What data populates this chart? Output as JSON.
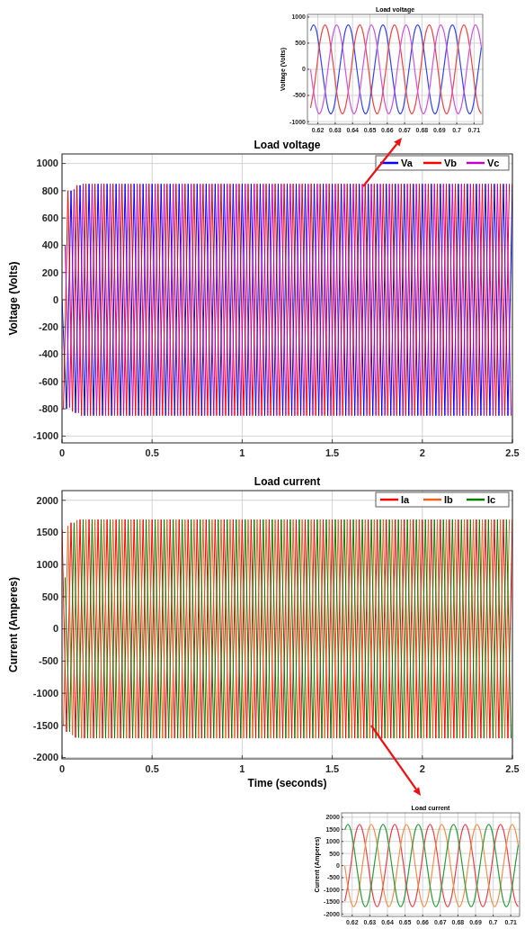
{
  "chart_data": [
    {
      "type": "line",
      "title": "Load voltage",
      "ylabel": "Voltage (Volts)",
      "grid": true,
      "xlim": [
        0.614,
        0.715
      ],
      "ylim": [
        -1050,
        1050
      ],
      "xticks": [
        0.62,
        0.63,
        0.64,
        0.65,
        0.66,
        0.67,
        0.68,
        0.69,
        0.7,
        0.71
      ],
      "yticks": [
        -1000,
        -500,
        0,
        500,
        1000
      ],
      "x": [
        0.6158,
        0.6175,
        0.6192,
        0.6208,
        0.6225,
        0.6242,
        0.6258,
        0.6275,
        0.6292,
        0.6308,
        0.6325,
        0.6342,
        0.6358,
        0.6375,
        0.6392,
        0.6408,
        0.6425,
        0.6442,
        0.6458,
        0.6475,
        0.6492,
        0.6508,
        0.6525,
        0.6542,
        0.6558,
        0.6575,
        0.6592,
        0.6608,
        0.6625,
        0.6642,
        0.6658,
        0.6675,
        0.6692,
        0.6708,
        0.6725,
        0.6742,
        0.6758,
        0.6775,
        0.6792,
        0.6808,
        0.6825,
        0.6842,
        0.6858,
        0.6875,
        0.6892,
        0.6908,
        0.6925,
        0.6942,
        0.6958,
        0.6975,
        0.6992,
        0.7008,
        0.7025,
        0.7042,
        0.7058,
        0.7075,
        0.7092,
        0.7108,
        0.7125,
        0.7142
      ],
      "series": [
        {
          "color": "#3344ee",
          "values": [
            736,
            850,
            736,
            425,
            0,
            -425,
            -736,
            -850,
            -736,
            -425,
            0,
            425,
            736,
            850,
            736,
            425,
            0,
            -425,
            -736,
            -850,
            -736,
            -425,
            0,
            425,
            736,
            850,
            736,
            425,
            0,
            -425,
            -736,
            -850,
            -736,
            -425,
            0,
            425,
            736,
            850,
            736,
            425,
            0,
            -425,
            -736,
            -850,
            -736,
            -425,
            0,
            425,
            736,
            850,
            736,
            425,
            0,
            -425,
            -736,
            -850,
            -736,
            -425,
            0,
            425
          ]
        },
        {
          "color": "#ee4444",
          "values": [
            -736,
            -425,
            0,
            425,
            736,
            850,
            736,
            425,
            0,
            -425,
            -736,
            -850,
            -736,
            -425,
            0,
            425,
            736,
            850,
            736,
            425,
            0,
            -425,
            -736,
            -850,
            -736,
            -425,
            0,
            425,
            736,
            850,
            736,
            425,
            0,
            -425,
            -736,
            -850,
            -736,
            -425,
            0,
            425,
            736,
            850,
            736,
            425,
            0,
            -425,
            -736,
            -850,
            -736,
            -425,
            0,
            425,
            736,
            850,
            736,
            425,
            0,
            -425,
            -736,
            -850
          ]
        },
        {
          "color": "#cc55dd",
          "values": [
            0,
            -425,
            -736,
            -850,
            -736,
            -425,
            0,
            425,
            736,
            850,
            736,
            425,
            0,
            -425,
            -736,
            -850,
            -736,
            -425,
            0,
            425,
            736,
            850,
            736,
            425,
            0,
            -425,
            -736,
            -850,
            -736,
            -425,
            0,
            425,
            736,
            850,
            736,
            425,
            0,
            -425,
            -736,
            -850,
            -736,
            -425,
            0,
            425,
            736,
            850,
            736,
            425,
            0,
            -425,
            -736,
            -850,
            -736,
            -425,
            0,
            425,
            736,
            850,
            736,
            425
          ]
        }
      ]
    },
    {
      "type": "line",
      "title": "Load voltage",
      "ylabel": "Voltage (Volts)",
      "grid": true,
      "legend": "top right",
      "xlim": [
        0,
        2.5
      ],
      "ylim": [
        -1050,
        1070
      ],
      "xticks": [
        0,
        0.5,
        1,
        1.5,
        2,
        2.5
      ],
      "yticks": [
        -1000,
        -800,
        -600,
        -400,
        -200,
        0,
        200,
        400,
        600,
        800,
        1000
      ],
      "series": [
        {
          "name": "Va",
          "color": "#0000ff",
          "x": [
            0,
            0.025,
            0.05,
            0.075,
            0.1,
            0.125,
            0.15,
            0.175,
            0.2,
            0.225,
            0.25,
            0.275,
            0.3,
            0.325,
            0.35,
            0.375,
            0.4,
            0.425,
            0.45,
            0.475,
            0.5,
            0.525,
            0.55,
            0.575,
            0.6,
            0.625,
            0.65,
            0.675,
            0.7,
            0.725,
            0.75,
            0.775,
            0.8,
            0.825,
            0.85,
            0.875,
            0.9,
            0.925,
            0.95,
            0.975,
            1,
            1.025,
            1.05,
            1.075,
            1.1,
            1.125,
            1.15,
            1.175,
            1.2,
            1.225,
            1.25,
            1.275,
            1.3,
            1.325,
            1.35,
            1.375,
            1.4,
            1.425,
            1.45,
            1.475,
            1.5,
            1.525,
            1.55,
            1.575,
            1.6,
            1.625,
            1.65,
            1.675,
            1.7,
            1.725,
            1.75,
            1.775,
            1.8,
            1.825,
            1.85,
            1.875,
            1.9,
            1.925,
            1.95,
            1.975,
            2,
            2.025,
            2.05,
            2.075,
            2.1,
            2.125,
            2.15,
            2.175,
            2.2,
            2.225,
            2.25,
            2.275,
            2.3,
            2.325,
            2.35,
            2.375,
            2.4,
            2.425,
            2.45,
            2.475,
            2.5
          ],
          "values": [
            0,
            -800,
            800,
            -830,
            840,
            -850,
            850,
            -850,
            850,
            -850,
            850,
            -850,
            850,
            -850,
            850,
            -850,
            850,
            -850,
            850,
            -850,
            850,
            -850,
            850,
            -850,
            850,
            -850,
            850,
            -850,
            850,
            -850,
            850,
            -850,
            850,
            -850,
            850,
            -850,
            850,
            -850,
            850,
            -850,
            850,
            -850,
            850,
            -850,
            850,
            -850,
            850,
            -850,
            850,
            -850,
            850,
            -850,
            850,
            -850,
            850,
            -850,
            850,
            -850,
            850,
            -850,
            850,
            -850,
            850,
            -850,
            850,
            -850,
            850,
            -850,
            850,
            -850,
            850,
            -850,
            850,
            -850,
            850,
            -850,
            850,
            -850,
            850,
            -850,
            850,
            -850,
            850,
            -850,
            850,
            -850,
            850,
            -850,
            850,
            -850,
            850,
            -850,
            850,
            -850,
            850,
            -850,
            850,
            -850,
            850,
            -850,
            850
          ]
        },
        {
          "name": "Vb",
          "color": "#ff0000",
          "x": [
            0.008,
            0.033,
            0.058,
            0.083,
            0.108,
            0.133,
            0.158,
            0.183,
            0.208,
            0.233,
            0.258,
            0.283,
            0.308,
            0.333,
            0.358,
            0.383,
            0.408,
            0.433,
            0.458,
            0.483,
            0.508,
            0.533,
            0.558,
            0.583,
            0.608,
            0.633,
            0.658,
            0.683,
            0.708,
            0.733,
            0.758,
            0.783,
            0.808,
            0.833,
            0.858,
            0.883,
            0.908,
            0.933,
            0.958,
            0.983,
            1.008,
            1.033,
            1.058,
            1.083,
            1.108,
            1.133,
            1.158,
            1.183,
            1.208,
            1.233,
            1.258,
            1.283,
            1.308,
            1.333,
            1.358,
            1.383,
            1.408,
            1.433,
            1.458,
            1.483,
            1.508,
            1.533,
            1.558,
            1.583,
            1.608,
            1.633,
            1.658,
            1.683,
            1.708,
            1.733,
            1.758,
            1.783,
            1.808,
            1.833,
            1.858,
            1.883,
            1.908,
            1.933,
            1.958,
            1.983,
            2.008,
            2.033,
            2.058,
            2.083,
            2.108,
            2.133,
            2.158,
            2.183,
            2.208,
            2.233,
            2.258,
            2.283,
            2.308,
            2.333,
            2.358,
            2.383,
            2.408,
            2.433,
            2.458,
            2.483
          ],
          "values": [
            -800,
            800,
            -820,
            840,
            -850,
            850,
            -850,
            850,
            -850,
            850,
            -850,
            850,
            -850,
            850,
            -850,
            850,
            -850,
            850,
            -850,
            850,
            -850,
            850,
            -850,
            850,
            -850,
            850,
            -850,
            850,
            -850,
            850,
            -850,
            850,
            -850,
            850,
            -850,
            850,
            -850,
            850,
            -850,
            850,
            -850,
            850,
            -850,
            850,
            -850,
            850,
            -850,
            850,
            -850,
            850,
            -850,
            850,
            -850,
            850,
            -850,
            850,
            -850,
            850,
            -850,
            850,
            -850,
            850,
            -850,
            850,
            -850,
            850,
            -850,
            850,
            -850,
            850,
            -850,
            850,
            -850,
            850,
            -850,
            850,
            -850,
            850,
            -850,
            850,
            -850,
            850,
            -850,
            850,
            -850,
            850,
            -850,
            850,
            -850,
            850,
            -850,
            850,
            -850,
            850,
            -850,
            850,
            -850,
            850,
            -850,
            850
          ]
        },
        {
          "name": "Vc",
          "color": "#c000c0",
          "x": [
            0.017,
            0.042,
            0.067,
            0.092,
            0.117,
            0.142,
            0.167,
            0.192,
            0.217,
            0.242,
            0.267,
            0.292,
            0.317,
            0.342,
            0.367,
            0.392,
            0.417,
            0.442,
            0.467,
            0.492,
            0.517,
            0.542,
            0.567,
            0.592,
            0.617,
            0.642,
            0.667,
            0.692,
            0.717,
            0.742,
            0.767,
            0.792,
            0.817,
            0.842,
            0.867,
            0.892,
            0.917,
            0.942,
            0.967,
            0.992,
            1.017,
            1.042,
            1.067,
            1.092,
            1.117,
            1.142,
            1.167,
            1.192,
            1.217,
            1.242,
            1.267,
            1.292,
            1.317,
            1.342,
            1.367,
            1.392,
            1.417,
            1.442,
            1.467,
            1.492,
            1.517,
            1.542,
            1.567,
            1.592,
            1.617,
            1.642,
            1.667,
            1.692,
            1.717,
            1.742,
            1.767,
            1.792,
            1.817,
            1.842,
            1.867,
            1.892,
            1.917,
            1.942,
            1.967,
            1.992,
            2.017,
            2.042,
            2.067,
            2.092,
            2.117,
            2.142,
            2.167,
            2.192,
            2.217,
            2.242,
            2.267,
            2.292,
            2.317,
            2.342,
            2.367,
            2.392,
            2.417,
            2.442,
            2.467,
            2.492
          ],
          "values": [
            400,
            -790,
            810,
            -830,
            850,
            -850,
            850,
            -850,
            850,
            -850,
            850,
            -850,
            850,
            -850,
            850,
            -850,
            850,
            -850,
            850,
            -850,
            850,
            -850,
            850,
            -850,
            850,
            -850,
            850,
            -850,
            850,
            -850,
            850,
            -850,
            850,
            -850,
            850,
            -850,
            850,
            -850,
            850,
            -850,
            850,
            -850,
            850,
            -850,
            850,
            -850,
            850,
            -850,
            850,
            -850,
            850,
            -850,
            850,
            -850,
            850,
            -850,
            850,
            -850,
            850,
            -850,
            850,
            -850,
            850,
            -850,
            850,
            -850,
            850,
            -850,
            850,
            -850,
            850,
            -850,
            850,
            -850,
            850,
            -850,
            850,
            -850,
            850,
            -850,
            850,
            -850,
            850,
            -850,
            850,
            -850,
            850,
            -850,
            850,
            -850,
            850,
            -850,
            850,
            -850,
            850,
            -850,
            850,
            -850,
            850,
            -850
          ]
        }
      ]
    },
    {
      "type": "line",
      "title": "Load current",
      "xlabel": "Time (seconds)",
      "ylabel": "Current (Amperes)",
      "grid": true,
      "legend": "top right",
      "xlim": [
        0,
        2.5
      ],
      "ylim": [
        -2020,
        2150
      ],
      "xticks": [
        0,
        0.5,
        1,
        1.5,
        2,
        2.5
      ],
      "yticks": [
        -2000,
        -1500,
        -1000,
        -500,
        0,
        500,
        1000,
        1500,
        2000
      ],
      "series": [
        {
          "name": "Ia",
          "color": "#ff0000",
          "x": [
            0,
            0.025,
            0.05,
            0.075,
            0.1,
            0.125,
            0.15,
            0.175,
            0.2,
            0.225,
            0.25,
            0.275,
            0.3,
            0.325,
            0.35,
            0.375,
            0.4,
            0.425,
            0.45,
            0.475,
            0.5,
            0.525,
            0.55,
            0.575,
            0.6,
            0.625,
            0.65,
            0.675,
            0.7,
            0.725,
            0.75,
            0.775,
            0.8,
            0.825,
            0.85,
            0.875,
            0.9,
            0.925,
            0.95,
            0.975,
            1,
            1.025,
            1.05,
            1.075,
            1.1,
            1.125,
            1.15,
            1.175,
            1.2,
            1.225,
            1.25,
            1.275,
            1.3,
            1.325,
            1.35,
            1.375,
            1.4,
            1.425,
            1.45,
            1.475,
            1.5,
            1.525,
            1.55,
            1.575,
            1.6,
            1.625,
            1.65,
            1.675,
            1.7,
            1.725,
            1.75,
            1.775,
            1.8,
            1.825,
            1.85,
            1.875,
            1.9,
            1.925,
            1.95,
            1.975,
            2,
            2.025,
            2.05,
            2.075,
            2.1,
            2.125,
            2.15,
            2.175,
            2.2,
            2.225,
            2.25,
            2.275,
            2.3,
            2.325,
            2.35,
            2.375,
            2.4,
            2.425,
            2.45,
            2.475,
            2.5
          ],
          "values": [
            1550,
            -1600,
            1650,
            -1690,
            1700,
            -1700,
            1700,
            -1700,
            1700,
            -1700,
            1700,
            -1700,
            1700,
            -1700,
            1700,
            -1700,
            1700,
            -1700,
            1700,
            -1700,
            1700,
            -1700,
            1700,
            -1700,
            1700,
            -1700,
            1700,
            -1700,
            1700,
            -1700,
            1700,
            -1700,
            1700,
            -1700,
            1700,
            -1700,
            1700,
            -1700,
            1700,
            -1700,
            1700,
            -1700,
            1700,
            -1700,
            1700,
            -1700,
            1700,
            -1700,
            1700,
            -1700,
            1700,
            -1700,
            1700,
            -1700,
            1700,
            -1700,
            1700,
            -1700,
            1700,
            -1700,
            1700,
            -1700,
            1700,
            -1700,
            1700,
            -1700,
            1700,
            -1700,
            1700,
            -1700,
            1700,
            -1700,
            1700,
            -1700,
            1700,
            -1700,
            1700,
            -1700,
            1700,
            -1700,
            1700,
            -1700,
            1700,
            -1700,
            1700,
            -1700,
            1700,
            -1700,
            1700,
            -1700,
            1700,
            -1700,
            1700,
            -1700,
            1700,
            -1700,
            1700,
            -1700,
            1700,
            -1700,
            1700
          ]
        },
        {
          "name": "Ib",
          "color": "#e8631a",
          "x": [
            0.008,
            0.033,
            0.058,
            0.083,
            0.108,
            0.133,
            0.158,
            0.183,
            0.208,
            0.233,
            0.258,
            0.283,
            0.308,
            0.333,
            0.358,
            0.383,
            0.408,
            0.433,
            0.458,
            0.483,
            0.508,
            0.533,
            0.558,
            0.583,
            0.608,
            0.633,
            0.658,
            0.683,
            0.708,
            0.733,
            0.758,
            0.783,
            0.808,
            0.833,
            0.858,
            0.883,
            0.908,
            0.933,
            0.958,
            0.983,
            1.008,
            1.033,
            1.058,
            1.083,
            1.108,
            1.133,
            1.158,
            1.183,
            1.208,
            1.233,
            1.258,
            1.283,
            1.308,
            1.333,
            1.358,
            1.383,
            1.408,
            1.433,
            1.458,
            1.483,
            1.508,
            1.533,
            1.558,
            1.583,
            1.608,
            1.633,
            1.658,
            1.683,
            1.708,
            1.733,
            1.758,
            1.783,
            1.808,
            1.833,
            1.858,
            1.883,
            1.908,
            1.933,
            1.958,
            1.983,
            2.008,
            2.033,
            2.058,
            2.083,
            2.108,
            2.133,
            2.158,
            2.183,
            2.208,
            2.233,
            2.258,
            2.283,
            2.308,
            2.333,
            2.358,
            2.383,
            2.408,
            2.433,
            2.458,
            2.483
          ],
          "values": [
            -1500,
            1600,
            -1650,
            1690,
            -1700,
            1700,
            -1700,
            1700,
            -1700,
            1700,
            -1700,
            1700,
            -1700,
            1700,
            -1700,
            1700,
            -1700,
            1700,
            -1700,
            1700,
            -1700,
            1700,
            -1700,
            1700,
            -1700,
            1700,
            -1700,
            1700,
            -1700,
            1700,
            -1700,
            1700,
            -1700,
            1700,
            -1700,
            1700,
            -1700,
            1700,
            -1700,
            1700,
            -1700,
            1700,
            -1700,
            1700,
            -1700,
            1700,
            -1700,
            1700,
            -1700,
            1700,
            -1700,
            1700,
            -1700,
            1700,
            -1700,
            1700,
            -1700,
            1700,
            -1700,
            1700,
            -1700,
            1700,
            -1700,
            1700,
            -1700,
            1700,
            -1700,
            1700,
            -1700,
            1700,
            -1700,
            1700,
            -1700,
            1700,
            -1700,
            1700,
            -1700,
            1700,
            -1700,
            1700,
            -1700,
            1700,
            -1700,
            1700,
            -1700,
            1700,
            -1700,
            1700,
            -1700,
            1700,
            -1700,
            1700,
            -1700,
            1700,
            -1700,
            1700,
            -1700,
            1700,
            -1700,
            1700
          ]
        },
        {
          "name": "Ic",
          "color": "#007f00",
          "x": [
            0.017,
            0.042,
            0.067,
            0.092,
            0.117,
            0.142,
            0.167,
            0.192,
            0.217,
            0.242,
            0.267,
            0.292,
            0.317,
            0.342,
            0.367,
            0.392,
            0.417,
            0.442,
            0.467,
            0.492,
            0.517,
            0.542,
            0.567,
            0.592,
            0.617,
            0.642,
            0.667,
            0.692,
            0.717,
            0.742,
            0.767,
            0.792,
            0.817,
            0.842,
            0.867,
            0.892,
            0.917,
            0.942,
            0.967,
            0.992,
            1.017,
            1.042,
            1.067,
            1.092,
            1.117,
            1.142,
            1.167,
            1.192,
            1.217,
            1.242,
            1.267,
            1.292,
            1.317,
            1.342,
            1.367,
            1.392,
            1.417,
            1.442,
            1.467,
            1.492,
            1.517,
            1.542,
            1.567,
            1.592,
            1.617,
            1.642,
            1.667,
            1.692,
            1.717,
            1.742,
            1.767,
            1.792,
            1.817,
            1.842,
            1.867,
            1.892,
            1.917,
            1.942,
            1.967,
            1.992,
            2.017,
            2.042,
            2.067,
            2.092,
            2.117,
            2.142,
            2.167,
            2.192,
            2.217,
            2.242,
            2.267,
            2.292,
            2.317,
            2.342,
            2.367,
            2.392,
            2.417,
            2.442,
            2.467,
            2.492
          ],
          "values": [
            800,
            -1600,
            1650,
            -1690,
            1700,
            -1700,
            1700,
            -1700,
            1700,
            -1700,
            1700,
            -1700,
            1700,
            -1700,
            1700,
            -1700,
            1700,
            -1700,
            1700,
            -1700,
            1700,
            -1700,
            1700,
            -1700,
            1700,
            -1700,
            1700,
            -1700,
            1700,
            -1700,
            1700,
            -1700,
            1700,
            -1700,
            1700,
            -1700,
            1700,
            -1700,
            1700,
            -1700,
            1700,
            -1700,
            1700,
            -1700,
            1700,
            -1700,
            1700,
            -1700,
            1700,
            -1700,
            1700,
            -1700,
            1700,
            -1700,
            1700,
            -1700,
            1700,
            -1700,
            1700,
            -1700,
            1700,
            -1700,
            1700,
            -1700,
            1700,
            -1700,
            1700,
            -1700,
            1700,
            -1700,
            1700,
            -1700,
            1700,
            -1700,
            1700,
            -1700,
            1700,
            -1700,
            1700,
            -1700,
            1700,
            -1700,
            1700,
            -1700,
            1700,
            -1700,
            1700,
            -1700,
            1700,
            -1700,
            1700,
            -1700,
            1700,
            -1700,
            1700,
            -1700,
            1700,
            -1700,
            1700,
            -1700
          ]
        }
      ]
    },
    {
      "type": "line",
      "title": "Load current",
      "ylabel": "Current (Amperes)",
      "grid": true,
      "xlim": [
        0.614,
        0.715
      ],
      "ylim": [
        -2100,
        2180
      ],
      "xticks": [
        0.62,
        0.63,
        0.64,
        0.65,
        0.66,
        0.67,
        0.68,
        0.69,
        0.7,
        0.71
      ],
      "yticks": [
        -2000,
        -1500,
        -1000,
        -500,
        0,
        500,
        1000,
        1500,
        2000
      ],
      "x": [
        0.6158,
        0.6175,
        0.6192,
        0.6208,
        0.6225,
        0.6242,
        0.6258,
        0.6275,
        0.6292,
        0.6308,
        0.6325,
        0.6342,
        0.6358,
        0.6375,
        0.6392,
        0.6408,
        0.6425,
        0.6442,
        0.6458,
        0.6475,
        0.6492,
        0.6508,
        0.6525,
        0.6542,
        0.6558,
        0.6575,
        0.6592,
        0.6608,
        0.6625,
        0.6642,
        0.6658,
        0.6675,
        0.6692,
        0.6708,
        0.6725,
        0.6742,
        0.6758,
        0.6775,
        0.6792,
        0.6808,
        0.6825,
        0.6842,
        0.6858,
        0.6875,
        0.6892,
        0.6908,
        0.6925,
        0.6942,
        0.6958,
        0.6975,
        0.6992,
        0.7008,
        0.7025,
        0.7042,
        0.7058,
        0.7075,
        0.7092,
        0.7108,
        0.7125,
        0.7142
      ],
      "series": [
        {
          "color": "#e8404a",
          "values": [
            -1472,
            -850,
            0,
            850,
            1472,
            1700,
            1472,
            850,
            0,
            -850,
            -1472,
            -1700,
            -1472,
            -850,
            0,
            850,
            1472,
            1700,
            1472,
            850,
            0,
            -850,
            -1472,
            -1700,
            -1472,
            -850,
            0,
            850,
            1472,
            1700,
            1472,
            850,
            0,
            -850,
            -1472,
            -1700,
            -1472,
            -850,
            0,
            850,
            1472,
            1700,
            1472,
            850,
            0,
            -850,
            -1472,
            -1700,
            -1472,
            -850,
            0,
            850,
            1472,
            1700,
            1472,
            850,
            0,
            -850,
            -1472,
            -1700
          ]
        },
        {
          "color": "#f0904a",
          "values": [
            0,
            -850,
            -1472,
            -1700,
            -1472,
            -850,
            0,
            850,
            1472,
            1700,
            1472,
            850,
            0,
            -850,
            -1472,
            -1700,
            -1472,
            -850,
            0,
            850,
            1472,
            1700,
            1472,
            850,
            0,
            -850,
            -1472,
            -1700,
            -1472,
            -850,
            0,
            850,
            1472,
            1700,
            1472,
            850,
            0,
            -850,
            -1472,
            -1700,
            -1472,
            -850,
            0,
            850,
            1472,
            1700,
            1472,
            850,
            0,
            -850,
            -1472,
            -1700,
            -1472,
            -850,
            0,
            850,
            1472,
            1700,
            1472,
            850
          ]
        },
        {
          "color": "#2a9a3a",
          "values": [
            1472,
            1700,
            1472,
            850,
            0,
            -850,
            -1472,
            -1700,
            -1472,
            -850,
            0,
            850,
            1472,
            1700,
            1472,
            850,
            0,
            -850,
            -1472,
            -1700,
            -1472,
            -850,
            0,
            850,
            1472,
            1700,
            1472,
            850,
            0,
            -850,
            -1472,
            -1700,
            -1472,
            -850,
            0,
            850,
            1472,
            1700,
            1472,
            850,
            0,
            -850,
            -1472,
            -1700,
            -1472,
            -850,
            0,
            850,
            1472,
            1700,
            1472,
            850,
            0,
            -850,
            -1472,
            -1700,
            -1472,
            -850,
            0,
            850
          ]
        }
      ]
    }
  ]
}
